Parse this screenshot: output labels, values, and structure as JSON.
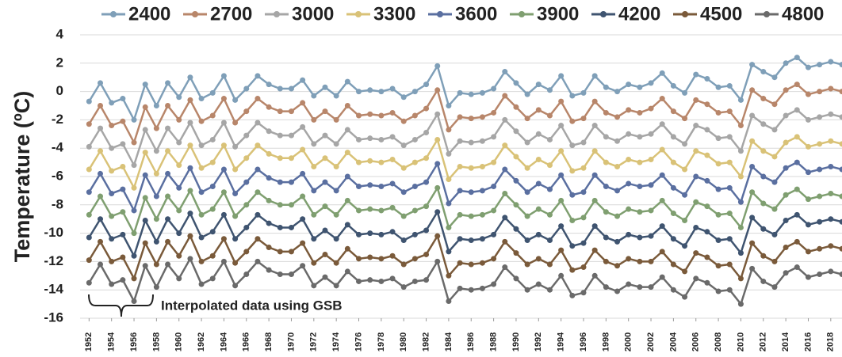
{
  "chart_data": {
    "type": "line",
    "y_label": "Temperature (ºC)",
    "annotation": "Interpolated data using GSB",
    "x": [
      1952,
      1953,
      1954,
      1955,
      1956,
      1957,
      1958,
      1959,
      1960,
      1961,
      1962,
      1963,
      1964,
      1965,
      1966,
      1967,
      1968,
      1969,
      1970,
      1971,
      1972,
      1973,
      1974,
      1975,
      1976,
      1977,
      1978,
      1979,
      1980,
      1981,
      1982,
      1983,
      1984,
      1985,
      1986,
      1987,
      1988,
      1989,
      1990,
      1991,
      1992,
      1993,
      1994,
      1995,
      1996,
      1997,
      1998,
      1999,
      2000,
      2001,
      2002,
      2003,
      2004,
      2005,
      2006,
      2007,
      2008,
      2009,
      2010,
      2011,
      2012,
      2013,
      2014,
      2015,
      2016,
      2017,
      2018,
      2019
    ],
    "xlim": [
      1951.2,
      2019
    ],
    "xticks": [
      1952,
      1954,
      1956,
      1958,
      1960,
      1962,
      1964,
      1966,
      1968,
      1970,
      1972,
      1974,
      1976,
      1978,
      1980,
      1982,
      1984,
      1986,
      1988,
      1990,
      1992,
      1994,
      1996,
      1998,
      2000,
      2002,
      2004,
      2006,
      2008,
      2010,
      2012,
      2014,
      2016,
      2018
    ],
    "ylim": [
      -16,
      4
    ],
    "yticks": [
      -16,
      -14,
      -12,
      -10,
      -8,
      -6,
      -4,
      -2,
      0,
      2,
      4
    ],
    "grid": true,
    "legend": "top",
    "series": [
      {
        "name": "2400",
        "color": "#7f9fb8",
        "values": [
          -0.7,
          0.6,
          -0.8,
          -0.5,
          -2.0,
          0.5,
          -1.0,
          0.6,
          -0.4,
          1.0,
          -0.5,
          -0.1,
          1.1,
          -0.6,
          0.2,
          1.1,
          0.5,
          0.2,
          0.2,
          0.8,
          -0.3,
          0.3,
          -0.3,
          0.7,
          0.0,
          0.1,
          0.0,
          0.2,
          -0.4,
          0.0,
          0.5,
          1.8,
          -1.0,
          -0.1,
          -0.2,
          -0.1,
          0.2,
          1.4,
          0.6,
          -0.2,
          0.5,
          0.1,
          1.1,
          -0.3,
          -0.1,
          1.1,
          0.3,
          0.0,
          0.5,
          0.3,
          0.6,
          1.3,
          0.4,
          -0.1,
          1.2,
          0.9,
          0.3,
          0.4,
          -0.6,
          1.9,
          1.4,
          1.0,
          2.0,
          2.4,
          1.7,
          1.9,
          2.1,
          1.9
        ]
      },
      {
        "name": "2700",
        "color": "#b8866a",
        "values": [
          -2.3,
          -1.0,
          -2.4,
          -2.1,
          -3.6,
          -1.1,
          -2.6,
          -1.0,
          -2.0,
          -0.6,
          -2.1,
          -1.7,
          -0.5,
          -2.2,
          -1.4,
          -0.5,
          -1.1,
          -1.4,
          -1.4,
          -0.8,
          -2.0,
          -1.4,
          -2.0,
          -1.0,
          -1.7,
          -1.6,
          -1.7,
          -1.5,
          -2.1,
          -1.7,
          -1.2,
          0.1,
          -2.7,
          -1.8,
          -1.9,
          -1.8,
          -1.5,
          -0.3,
          -1.1,
          -1.9,
          -1.3,
          -1.7,
          -0.7,
          -2.1,
          -1.9,
          -0.7,
          -1.5,
          -1.8,
          -1.3,
          -1.5,
          -1.2,
          -0.5,
          -1.4,
          -1.9,
          -0.6,
          -0.9,
          -1.5,
          -1.4,
          -2.4,
          0.1,
          -0.5,
          -0.9,
          0.1,
          0.5,
          -0.2,
          0.0,
          0.2,
          0.0
        ]
      },
      {
        "name": "3000",
        "color": "#a6a6a6",
        "values": [
          -3.9,
          -2.6,
          -4.0,
          -3.7,
          -5.2,
          -2.7,
          -4.2,
          -2.6,
          -3.6,
          -2.2,
          -3.8,
          -3.4,
          -2.2,
          -3.9,
          -3.1,
          -2.2,
          -2.8,
          -3.1,
          -3.1,
          -2.5,
          -3.7,
          -3.1,
          -3.7,
          -2.7,
          -3.4,
          -3.3,
          -3.4,
          -3.2,
          -3.8,
          -3.4,
          -2.9,
          -1.6,
          -4.4,
          -3.5,
          -3.6,
          -3.5,
          -3.2,
          -2.0,
          -2.8,
          -3.6,
          -3.0,
          -3.4,
          -2.4,
          -3.8,
          -3.6,
          -2.4,
          -3.2,
          -3.5,
          -3.0,
          -3.2,
          -3.0,
          -2.3,
          -3.2,
          -3.7,
          -2.4,
          -2.7,
          -3.3,
          -3.2,
          -4.2,
          -1.7,
          -2.3,
          -2.7,
          -1.7,
          -1.3,
          -2.0,
          -1.8,
          -1.6,
          -1.8
        ]
      },
      {
        "name": "3300",
        "color": "#d9c277",
        "values": [
          -5.5,
          -4.2,
          -5.6,
          -5.3,
          -6.8,
          -4.3,
          -5.8,
          -4.2,
          -5.2,
          -3.8,
          -5.4,
          -5.0,
          -3.8,
          -5.5,
          -4.7,
          -3.8,
          -4.4,
          -4.7,
          -4.7,
          -4.1,
          -5.3,
          -4.7,
          -5.3,
          -4.3,
          -5.0,
          -4.9,
          -5.0,
          -4.8,
          -5.4,
          -5.0,
          -4.7,
          -3.4,
          -6.2,
          -5.3,
          -5.4,
          -5.3,
          -5.0,
          -3.8,
          -4.6,
          -5.4,
          -4.8,
          -5.2,
          -4.2,
          -5.6,
          -5.4,
          -4.2,
          -5.0,
          -5.3,
          -4.8,
          -5.0,
          -4.8,
          -4.1,
          -5.0,
          -5.5,
          -4.2,
          -4.5,
          -5.1,
          -5.0,
          -6.0,
          -3.5,
          -4.2,
          -4.6,
          -3.6,
          -3.2,
          -3.9,
          -3.7,
          -3.5,
          -3.7
        ]
      },
      {
        "name": "3600",
        "color": "#5a6fa0",
        "values": [
          -7.1,
          -5.8,
          -7.2,
          -6.9,
          -8.4,
          -5.9,
          -7.4,
          -5.8,
          -6.8,
          -5.4,
          -7.1,
          -6.7,
          -5.5,
          -7.2,
          -6.4,
          -5.5,
          -6.1,
          -6.4,
          -6.4,
          -5.8,
          -7.0,
          -6.4,
          -7.0,
          -6.0,
          -6.7,
          -6.6,
          -6.7,
          -6.5,
          -7.1,
          -6.7,
          -6.4,
          -5.1,
          -7.9,
          -7.0,
          -7.1,
          -7.0,
          -6.7,
          -5.5,
          -6.3,
          -7.1,
          -6.5,
          -6.9,
          -5.9,
          -7.3,
          -7.1,
          -5.9,
          -6.7,
          -7.0,
          -6.5,
          -6.7,
          -6.6,
          -5.9,
          -6.8,
          -7.3,
          -6.0,
          -6.3,
          -6.9,
          -6.8,
          -7.8,
          -5.3,
          -6.0,
          -6.4,
          -5.4,
          -5.0,
          -5.7,
          -5.5,
          -5.3,
          -5.5
        ]
      },
      {
        "name": "3900",
        "color": "#7f9f70",
        "values": [
          -8.7,
          -7.4,
          -8.8,
          -8.5,
          -10.0,
          -7.5,
          -9.0,
          -7.4,
          -8.4,
          -7.0,
          -8.7,
          -8.3,
          -7.1,
          -8.8,
          -8.0,
          -7.1,
          -7.7,
          -8.0,
          -8.0,
          -7.4,
          -8.7,
          -8.1,
          -8.7,
          -7.7,
          -8.4,
          -8.3,
          -8.4,
          -8.2,
          -8.8,
          -8.4,
          -8.1,
          -6.8,
          -9.6,
          -8.7,
          -8.8,
          -8.7,
          -8.4,
          -7.2,
          -8.0,
          -8.8,
          -8.3,
          -8.7,
          -7.7,
          -9.1,
          -8.9,
          -7.7,
          -8.5,
          -8.8,
          -8.3,
          -8.5,
          -8.4,
          -7.7,
          -8.6,
          -9.1,
          -7.8,
          -8.1,
          -8.7,
          -8.6,
          -9.6,
          -7.1,
          -7.9,
          -8.3,
          -7.3,
          -6.9,
          -7.6,
          -7.4,
          -7.2,
          -7.4
        ]
      },
      {
        "name": "4200",
        "color": "#3f5470",
        "values": [
          -10.3,
          -9.0,
          -10.4,
          -10.1,
          -11.6,
          -9.1,
          -10.6,
          -9.0,
          -10.0,
          -8.6,
          -10.3,
          -9.9,
          -8.7,
          -10.4,
          -9.6,
          -8.7,
          -9.3,
          -9.6,
          -9.6,
          -9.0,
          -10.4,
          -9.8,
          -10.4,
          -9.4,
          -10.1,
          -10.0,
          -10.1,
          -9.9,
          -10.5,
          -10.1,
          -9.8,
          -8.5,
          -11.3,
          -10.4,
          -10.5,
          -10.4,
          -10.1,
          -8.9,
          -9.7,
          -10.5,
          -10.1,
          -10.5,
          -9.5,
          -10.9,
          -10.7,
          -9.5,
          -10.3,
          -10.6,
          -10.1,
          -10.3,
          -10.2,
          -9.5,
          -10.4,
          -10.9,
          -9.6,
          -9.9,
          -10.5,
          -10.4,
          -11.4,
          -8.9,
          -9.7,
          -10.1,
          -9.1,
          -8.7,
          -9.4,
          -9.2,
          -9.0,
          -9.2
        ]
      },
      {
        "name": "4500",
        "color": "#7a5a3a",
        "values": [
          -11.9,
          -10.6,
          -12.0,
          -11.7,
          -13.2,
          -10.7,
          -12.2,
          -10.6,
          -11.6,
          -10.2,
          -12.0,
          -11.6,
          -10.4,
          -12.1,
          -11.3,
          -10.4,
          -11.0,
          -11.3,
          -11.3,
          -10.7,
          -12.1,
          -11.5,
          -12.1,
          -11.1,
          -11.8,
          -11.7,
          -11.8,
          -11.6,
          -12.2,
          -11.8,
          -11.5,
          -10.2,
          -13.0,
          -12.1,
          -12.2,
          -12.1,
          -11.8,
          -10.6,
          -11.4,
          -12.2,
          -11.8,
          -12.2,
          -11.2,
          -12.6,
          -12.4,
          -11.2,
          -12.0,
          -12.3,
          -11.8,
          -12.0,
          -12.0,
          -11.3,
          -12.2,
          -12.7,
          -11.4,
          -11.7,
          -12.3,
          -12.2,
          -13.2,
          -10.7,
          -11.6,
          -12.0,
          -11.0,
          -10.6,
          -11.3,
          -11.1,
          -10.9,
          -11.1
        ]
      },
      {
        "name": "4800",
        "color": "#6a6a6a",
        "values": [
          -13.5,
          -12.2,
          -13.6,
          -13.3,
          -14.8,
          -12.3,
          -13.8,
          -12.2,
          -13.2,
          -11.8,
          -13.6,
          -13.2,
          -12.0,
          -13.7,
          -12.9,
          -12.0,
          -12.6,
          -12.9,
          -12.9,
          -12.3,
          -13.7,
          -13.1,
          -13.7,
          -12.7,
          -13.4,
          -13.3,
          -13.4,
          -13.2,
          -13.8,
          -13.4,
          -13.3,
          -12.0,
          -14.8,
          -13.9,
          -14.0,
          -13.9,
          -13.6,
          -12.4,
          -13.2,
          -14.0,
          -13.6,
          -14.0,
          -13.0,
          -14.4,
          -14.2,
          -13.0,
          -13.8,
          -14.1,
          -13.6,
          -13.8,
          -13.8,
          -13.1,
          -14.0,
          -14.5,
          -13.2,
          -13.5,
          -14.1,
          -14.0,
          -15.0,
          -12.5,
          -13.4,
          -13.8,
          -12.8,
          -12.4,
          -13.1,
          -12.9,
          -12.7,
          -12.9
        ]
      }
    ]
  }
}
